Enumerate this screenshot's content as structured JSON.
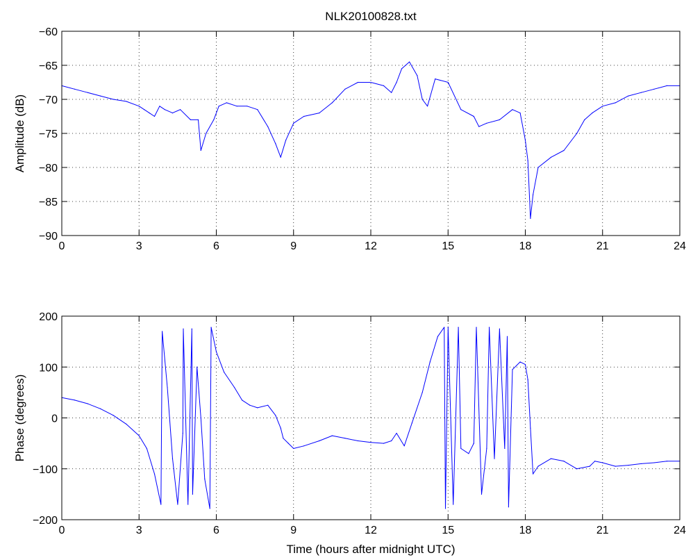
{
  "colors": {
    "series": "#0000ff",
    "axes": "#000000",
    "background": "#ffffff"
  },
  "chart_data": [
    {
      "type": "line",
      "title": "NLK20100828.txt",
      "xlabel": "",
      "ylabel": "Amplitude (dB)",
      "xlim": [
        0,
        24
      ],
      "ylim": [
        -90,
        -60
      ],
      "xticks": [
        0,
        3,
        6,
        9,
        12,
        15,
        18,
        21,
        24
      ],
      "yticks": [
        -60,
        -65,
        -70,
        -75,
        -80,
        -85,
        -90
      ],
      "grid": true,
      "series": [
        {
          "x": [
            0,
            0.5,
            1,
            1.5,
            2,
            2.5,
            3,
            3.2,
            3.4,
            3.6,
            3.8,
            4,
            4.3,
            4.6,
            5,
            5.3,
            5.4,
            5.6,
            5.9,
            6.1,
            6.4,
            6.8,
            7.2,
            7.6,
            8,
            8.3,
            8.5,
            8.7,
            9,
            9.4,
            10,
            10.5,
            11,
            11.5,
            12,
            12.5,
            12.8,
            13,
            13.2,
            13.5,
            13.8,
            14,
            14.2,
            14.5,
            15,
            15.5,
            16,
            16.2,
            16.5,
            17,
            17.5,
            17.8,
            18,
            18.1,
            18.2,
            18.3,
            18.5,
            19,
            19.5,
            20,
            20.3,
            20.6,
            21,
            21.5,
            22,
            22.5,
            23,
            23.5,
            24
          ],
          "values": [
            -68,
            -68.5,
            -69,
            -69.5,
            -70,
            -70.3,
            -71,
            -71.5,
            -72,
            -72.5,
            -71,
            -71.5,
            -72,
            -71.5,
            -73,
            -73,
            -77.5,
            -75,
            -73,
            -71,
            -70.5,
            -71,
            -71,
            -71.5,
            -74,
            -76.5,
            -78.5,
            -76,
            -73.5,
            -72.5,
            -72,
            -70.5,
            -68.5,
            -67.5,
            -67.5,
            -68,
            -69,
            -67.5,
            -65.5,
            -64.5,
            -66.5,
            -70,
            -71,
            -67,
            -67.5,
            -71.5,
            -72.5,
            -74,
            -73.5,
            -73,
            -71.5,
            -72,
            -76,
            -79,
            -87.5,
            -84,
            -80,
            -78.5,
            -77.5,
            -75,
            -73,
            -72,
            -71,
            -70.5,
            -69.5,
            -69,
            -68.5,
            -68,
            -68
          ]
        }
      ]
    },
    {
      "type": "line",
      "title": "",
      "xlabel": "Time (hours after midnight UTC)",
      "ylabel": "Phase (degrees)",
      "xlim": [
        0,
        24
      ],
      "ylim": [
        -200,
        200
      ],
      "xticks": [
        0,
        3,
        6,
        9,
        12,
        15,
        18,
        21,
        24
      ],
      "yticks": [
        200,
        100,
        0,
        -100,
        -200
      ],
      "grid": true,
      "series": [
        {
          "x": [
            0,
            0.5,
            1,
            1.5,
            2,
            2.5,
            3,
            3.3,
            3.6,
            3.85,
            3.9,
            4.1,
            4.3,
            4.5,
            4.7,
            4.72,
            4.9,
            5.05,
            5.08,
            5.25,
            5.4,
            5.55,
            5.75,
            5.8,
            6,
            6.3,
            6.7,
            7,
            7.3,
            7.6,
            8,
            8.3,
            8.5,
            8.6,
            8.8,
            9,
            9.4,
            10,
            10.5,
            11,
            11.5,
            12,
            12.5,
            12.8,
            13,
            13.3,
            13.6,
            14,
            14.3,
            14.6,
            14.85,
            14.9,
            15,
            15.2,
            15.4,
            15.5,
            15.8,
            16,
            16.1,
            16.3,
            16.5,
            16.6,
            16.8,
            17,
            17.2,
            17.3,
            17.35,
            17.5,
            17.8,
            18,
            18.1,
            18.2,
            18.3,
            18.5,
            19,
            19.5,
            20,
            20.5,
            20.7,
            21,
            21.5,
            22,
            22.5,
            23,
            23.5,
            24
          ],
          "values": [
            40,
            35,
            28,
            18,
            5,
            -12,
            -35,
            -60,
            -110,
            -170,
            170,
            60,
            -80,
            -170,
            -30,
            175,
            -170,
            175,
            -150,
            100,
            0,
            -120,
            -178,
            178,
            130,
            90,
            60,
            35,
            25,
            20,
            25,
            5,
            -20,
            -40,
            -50,
            -60,
            -55,
            -45,
            -35,
            -40,
            -45,
            -48,
            -50,
            -45,
            -30,
            -55,
            -10,
            50,
            110,
            160,
            178,
            -178,
            178,
            -170,
            178,
            -60,
            -70,
            -50,
            178,
            -150,
            -60,
            178,
            -80,
            175,
            -60,
            160,
            -175,
            95,
            110,
            105,
            75,
            -20,
            -110,
            -95,
            -80,
            -85,
            -100,
            -95,
            -85,
            -88,
            -95,
            -93,
            -90,
            -88,
            -85,
            -85
          ]
        }
      ]
    }
  ]
}
